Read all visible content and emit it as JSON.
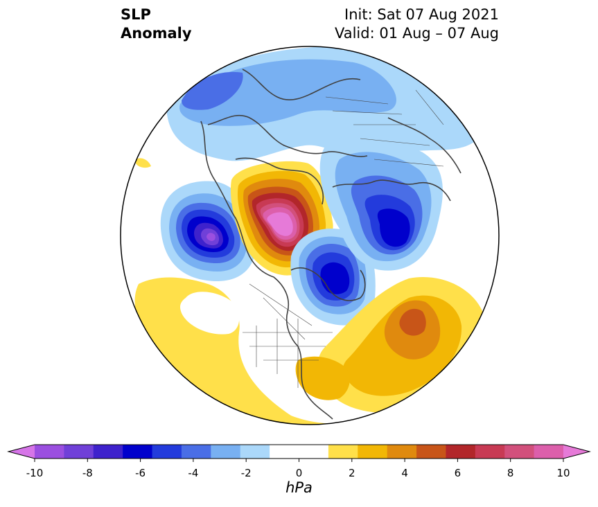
{
  "title": {
    "left_line1": "SLP",
    "left_line2": "Anomaly",
    "right_line1": "Init: Sat 07 Aug 2021",
    "right_line2": "Valid: 01 Aug – 07 Aug"
  },
  "colorbar": {
    "units": "hPa",
    "ticks": [
      "-10",
      "-8",
      "-6",
      "-4",
      "-2",
      "0",
      "2",
      "4",
      "6",
      "8",
      "10"
    ],
    "under_color": "#d675e8",
    "over_color": "#e67ad8",
    "colors": [
      "#9b4fe0",
      "#7040d8",
      "#3e22cc",
      "#0000cc",
      "#233bdc",
      "#4a6ee6",
      "#78b0f2",
      "#abd8fa",
      "#ffffff",
      "#ffffff",
      "#ffe04a",
      "#f2b705",
      "#e08a0e",
      "#c85518",
      "#b2262a",
      "#c83a54",
      "#d2507c",
      "#dc5fab"
    ]
  },
  "map": {
    "projection": "north polar stereographic",
    "anomalies": [
      {
        "region": "Gulf of Alaska",
        "sign": "negative",
        "peak_hPa": -9
      },
      {
        "region": "Beaufort Sea",
        "sign": "positive",
        "peak_hPa": 10
      },
      {
        "region": "Baffin Bay / Greenland",
        "sign": "negative",
        "peak_hPa": -6
      },
      {
        "region": "Central Siberia",
        "sign": "negative",
        "peak_hPa": -6
      },
      {
        "region": "Central North Atlantic",
        "sign": "positive",
        "peak_hPa": 5
      },
      {
        "region": "Eastern United States",
        "sign": "positive",
        "peak_hPa": 3
      }
    ]
  }
}
